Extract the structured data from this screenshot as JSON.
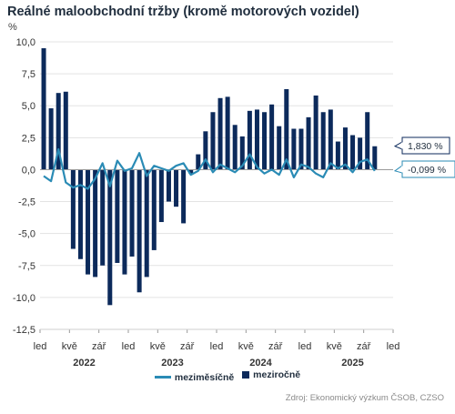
{
  "chart_data": {
    "type": "bar",
    "title": "Reálné maloobchodní tržby (kromě motorových vozidel)",
    "unit": "%",
    "ylim": [
      -12.5,
      10.0
    ],
    "yticks": [
      "10,0",
      "7,5",
      "5,0",
      "2,5",
      "0,0",
      "-2,5",
      "-5,0",
      "-7,5",
      "-10,0",
      "-12,5"
    ],
    "ytick_values": [
      10.0,
      7.5,
      5.0,
      2.5,
      0.0,
      -2.5,
      -5.0,
      -7.5,
      -10.0,
      -12.5
    ],
    "grid": true,
    "x_tick_labels": [
      {
        "index": 0,
        "label": "led"
      },
      {
        "index": 4,
        "label": "kvě"
      },
      {
        "index": 8,
        "label": "zář"
      },
      {
        "index": 12,
        "label": "led"
      },
      {
        "index": 16,
        "label": "kvě"
      },
      {
        "index": 20,
        "label": "zář"
      },
      {
        "index": 24,
        "label": "led"
      },
      {
        "index": 28,
        "label": "kvě"
      },
      {
        "index": 32,
        "label": "zář"
      },
      {
        "index": 36,
        "label": "led"
      },
      {
        "index": 40,
        "label": "kvě"
      },
      {
        "index": 44,
        "label": "zář"
      },
      {
        "index": 48,
        "label": "led"
      }
    ],
    "years": [
      {
        "label": "2022",
        "start": 0,
        "end": 11
      },
      {
        "label": "2023",
        "start": 12,
        "end": 23
      },
      {
        "label": "2024",
        "start": 24,
        "end": 35
      },
      {
        "label": "2025",
        "start": 36,
        "end": 48
      }
    ],
    "series": [
      {
        "name": "meziročně",
        "kind": "bar",
        "color": "#0c2a5b",
        "values": [
          9.5,
          4.8,
          6.0,
          6.1,
          -6.2,
          -7.0,
          -8.2,
          -8.4,
          -7.5,
          -10.6,
          -7.3,
          -8.2,
          -6.8,
          -9.6,
          -8.4,
          -6.3,
          -4.1,
          -2.5,
          -2.9,
          -4.2,
          -0.3,
          1.2,
          3.0,
          4.5,
          5.6,
          5.7,
          3.5,
          2.6,
          4.6,
          4.7,
          4.5,
          5.1,
          3.4,
          6.3,
          3.2,
          3.2,
          4.1,
          5.8,
          4.5,
          4.7,
          2.2,
          3.3,
          2.7,
          2.5,
          4.5,
          1.83
        ]
      },
      {
        "name": "meziměsíčně",
        "kind": "line",
        "color": "#2a8bb5",
        "values": [
          -0.5,
          -0.9,
          1.6,
          -1.0,
          -1.4,
          -1.2,
          -1.5,
          -0.7,
          0.5,
          -1.3,
          0.7,
          -0.1,
          0.1,
          1.3,
          -0.5,
          0.3,
          0.1,
          -0.1,
          0.3,
          0.5,
          -0.4,
          -0.1,
          0.8,
          -0.2,
          0.4,
          0.1,
          -0.2,
          0.3,
          1.2,
          0.2,
          -0.3,
          0.0,
          -0.4,
          0.8,
          -0.6,
          0.4,
          0.2,
          -0.3,
          -0.6,
          0.5,
          0.1,
          0.4,
          -0.2,
          0.6,
          0.8,
          -0.099
        ]
      }
    ],
    "callouts": [
      {
        "series": "meziročně",
        "label": "1,830 %",
        "color": "#0c2a5b"
      },
      {
        "series": "meziměsíčně",
        "label": "-0,099 %",
        "color": "#2a8bb5"
      }
    ],
    "legend": [
      "meziměsíčně",
      "meziročně"
    ],
    "legend_position": "bottom",
    "source": "Zdroj: Ekonomický výzkum ČSOB, CZSO"
  }
}
